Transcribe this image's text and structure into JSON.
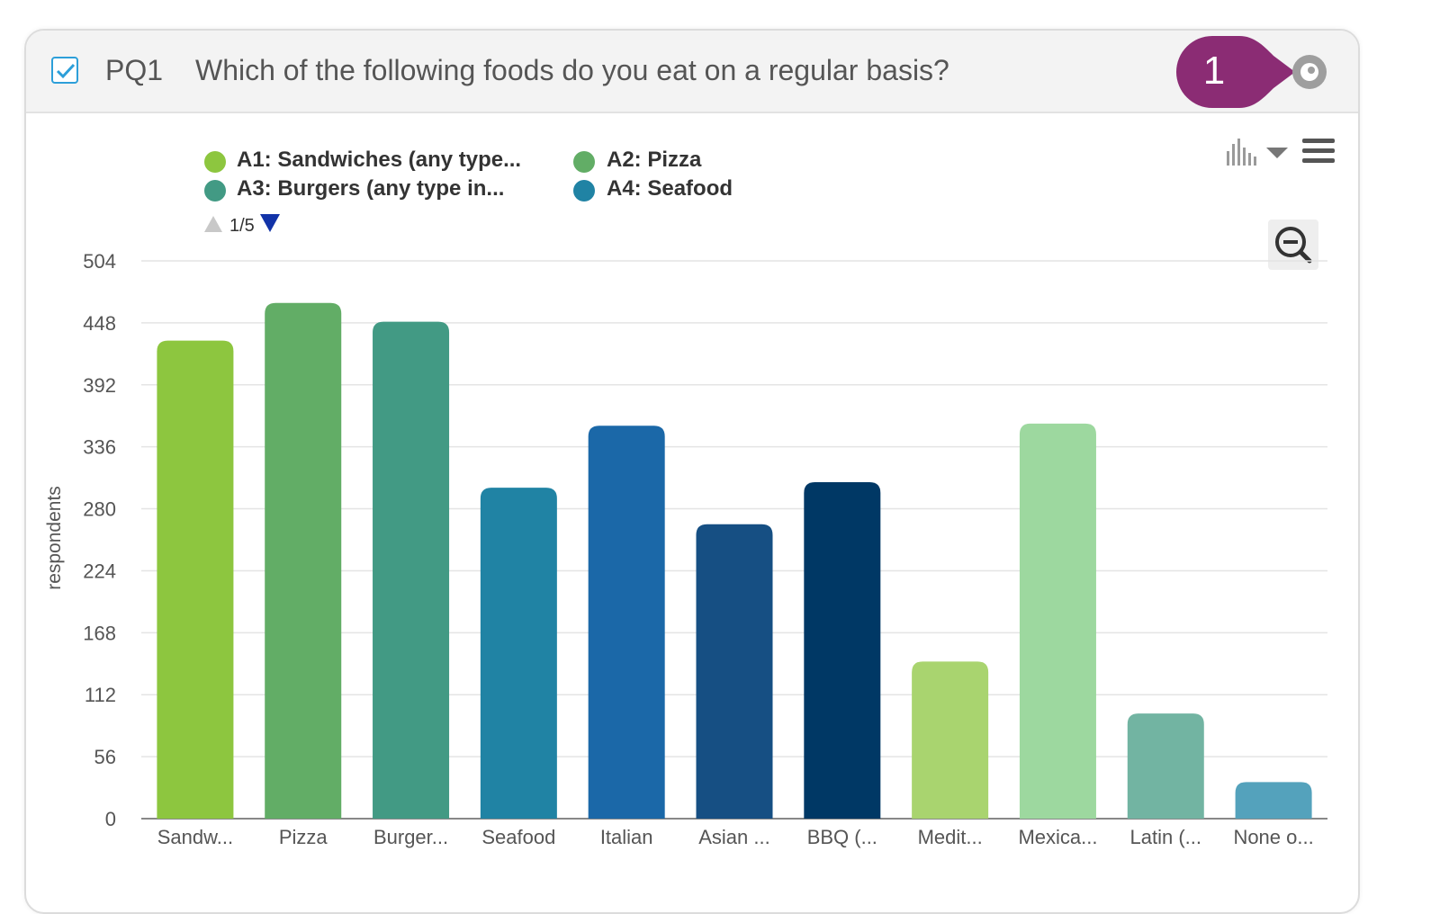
{
  "header": {
    "checkbox_checked": true,
    "question_id": "PQ1",
    "question_text": "Which of the following foods do you eat on a regular basis?",
    "callout_number": "1",
    "callout_color": "#8b2c74"
  },
  "legend": {
    "items": [
      {
        "label": "A1: Sandwiches (any type...",
        "color": "#8dc63f"
      },
      {
        "label": "A2: Pizza",
        "color": "#62ad66"
      },
      {
        "label": "A3: Burgers (any type in...",
        "color": "#429a84"
      },
      {
        "label": "A4: Seafood",
        "color": "#2083a4"
      }
    ],
    "page_indicator": "1/5"
  },
  "toolbar": {
    "chart_type_icon": "bar-chart-icon",
    "dropdown_icon": "caret-down-icon",
    "menu_icon": "hamburger-menu-icon",
    "zoom_icon": "zoom-out-icon"
  },
  "chart_data": {
    "type": "bar",
    "ylabel": "respondents",
    "xlabel": "",
    "ylim": [
      0,
      504
    ],
    "yticks": [
      0,
      56,
      112,
      168,
      224,
      280,
      336,
      392,
      448,
      504
    ],
    "grid": true,
    "legend_position": "top-left",
    "categories": [
      "Sandw...",
      "Pizza",
      "Burger...",
      "Seafood",
      "Italian",
      "Asian ...",
      "BBQ (...",
      "Medit...",
      "Mexica...",
      "Latin (...",
      "None o..."
    ],
    "values": [
      432,
      466,
      449,
      299,
      355,
      266,
      304,
      142,
      357,
      95,
      33
    ],
    "colors": [
      "#8dc63f",
      "#62ad66",
      "#429a84",
      "#2083a4",
      "#1b68a8",
      "#164f83",
      "#003865",
      "#a9d46f",
      "#9dd89f",
      "#72b4a2",
      "#54a2bc"
    ]
  }
}
